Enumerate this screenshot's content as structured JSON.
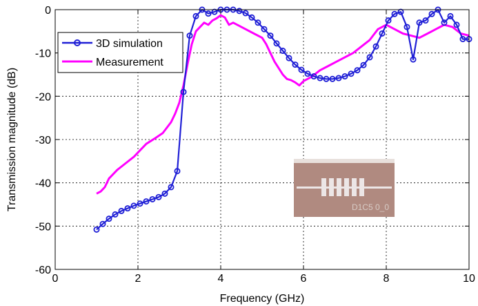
{
  "chart_data": {
    "type": "line",
    "title": "",
    "xlabel": "Frequency (GHz)",
    "ylabel": "Transmission magnitude (dB)",
    "xlim": [
      0,
      10
    ],
    "ylim": [
      -60,
      0
    ],
    "xticks": [
      0,
      2,
      4,
      6,
      8,
      10
    ],
    "yticks": [
      0,
      -10,
      -20,
      -30,
      -40,
      -50,
      -60
    ],
    "grid": true,
    "legend_position": "top-left",
    "series": [
      {
        "name": "3D simulation",
        "color": "#1f1fd6",
        "marker": "circle",
        "x": [
          1.0,
          1.15,
          1.3,
          1.45,
          1.6,
          1.75,
          1.9,
          2.05,
          2.2,
          2.35,
          2.5,
          2.65,
          2.8,
          2.95,
          3.1,
          3.25,
          3.4,
          3.55,
          3.7,
          3.85,
          4.0,
          4.15,
          4.3,
          4.45,
          4.6,
          4.75,
          4.9,
          5.05,
          5.2,
          5.35,
          5.5,
          5.65,
          5.8,
          5.95,
          6.1,
          6.25,
          6.4,
          6.55,
          6.7,
          6.85,
          7.0,
          7.15,
          7.3,
          7.45,
          7.6,
          7.75,
          7.9,
          8.05,
          8.2,
          8.35,
          8.5,
          8.65,
          8.8,
          8.95,
          9.1,
          9.25,
          9.4,
          9.55,
          9.7,
          9.85,
          10.0
        ],
        "y": [
          -50.8,
          -49.5,
          -48.3,
          -47.3,
          -46.5,
          -45.9,
          -45.3,
          -44.8,
          -44.3,
          -43.8,
          -43.3,
          -42.5,
          -41.0,
          -37.3,
          -19.0,
          -6.0,
          -1.5,
          0.0,
          -0.9,
          -0.5,
          0.0,
          0.0,
          0.0,
          -0.3,
          -0.8,
          -1.8,
          -3.0,
          -4.5,
          -6.0,
          -7.8,
          -9.5,
          -11.2,
          -12.7,
          -13.9,
          -14.8,
          -15.4,
          -15.8,
          -16.0,
          -16.0,
          -15.8,
          -15.4,
          -14.8,
          -14.0,
          -12.8,
          -11.0,
          -8.5,
          -5.5,
          -2.5,
          -1.0,
          -0.5,
          -4.0,
          -11.5,
          -3.0,
          -2.5,
          -1.0,
          0.0,
          -3.0,
          -1.5,
          -3.5,
          -6.8,
          -6.8
        ]
      },
      {
        "name": "Measurement",
        "color": "#ff00ff",
        "marker": "none",
        "x": [
          1.0,
          1.1,
          1.2,
          1.3,
          1.5,
          1.7,
          1.9,
          2.0,
          2.2,
          2.4,
          2.6,
          2.8,
          2.9,
          3.0,
          3.1,
          3.2,
          3.3,
          3.4,
          3.5,
          3.6,
          3.7,
          3.8,
          3.9,
          4.0,
          4.1,
          4.2,
          4.3,
          4.4,
          4.6,
          4.8,
          5.0,
          5.1,
          5.2,
          5.3,
          5.4,
          5.5,
          5.6,
          5.7,
          5.8,
          5.9,
          6.0,
          6.2,
          6.4,
          6.6,
          6.8,
          7.0,
          7.2,
          7.4,
          7.6,
          7.8,
          8.0,
          8.2,
          8.4,
          8.6,
          8.8,
          9.0,
          9.2,
          9.4,
          9.6,
          9.8,
          10.0
        ],
        "y": [
          -42.5,
          -42.0,
          -41.0,
          -39.0,
          -37.0,
          -35.5,
          -34.0,
          -33.0,
          -31.0,
          -29.8,
          -28.5,
          -26.0,
          -24.0,
          -21.5,
          -17.5,
          -12.5,
          -8.0,
          -5.0,
          -4.0,
          -3.0,
          -3.5,
          -2.5,
          -2.0,
          -1.3,
          -1.8,
          -3.5,
          -3.0,
          -3.5,
          -4.5,
          -5.5,
          -6.5,
          -8.0,
          -10.0,
          -12.0,
          -13.5,
          -15.0,
          -16.0,
          -16.3,
          -16.8,
          -17.5,
          -16.5,
          -15.5,
          -14.0,
          -13.0,
          -12.0,
          -11.0,
          -10.0,
          -8.5,
          -7.0,
          -4.5,
          -3.5,
          -4.5,
          -5.5,
          -6.0,
          -6.5,
          -5.5,
          -4.5,
          -3.5,
          -4.0,
          -5.5,
          -6.0
        ]
      }
    ]
  },
  "inset": {
    "label": "D1C5 0_0",
    "colors": {
      "board": "#b08a80",
      "trace": "#ece6e6",
      "edge": "#e8e0dc"
    }
  }
}
